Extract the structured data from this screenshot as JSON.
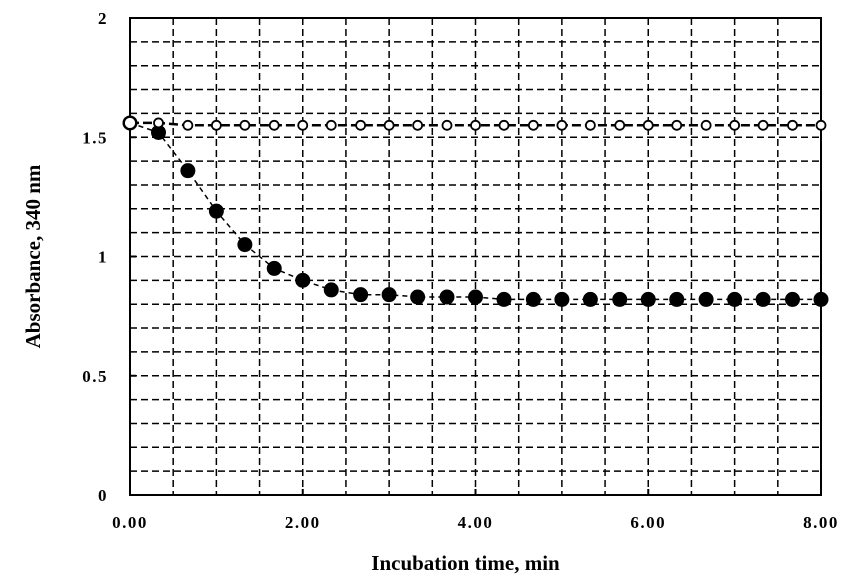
{
  "chart_data": {
    "type": "scatter",
    "xlabel": "Incubation time, min",
    "ylabel": "Absorbance, 340 nm",
    "xlim": [
      0,
      8
    ],
    "ylim": [
      0,
      2
    ],
    "x_ticks": [
      0,
      2,
      4,
      6,
      8
    ],
    "x_tick_labels": [
      "0.00",
      "2.00",
      "4.00",
      "6.00",
      "8.00"
    ],
    "y_ticks": [
      0,
      0.5,
      1,
      1.5,
      2
    ],
    "y_tick_labels": [
      "0",
      "0.5",
      "1",
      "1.5",
      "2"
    ],
    "grid": true,
    "grid_style": "dashed",
    "x_grid_step": 0.5,
    "y_grid_step": 0.1,
    "connector": "dashed",
    "series": [
      {
        "marker": "filled-circle",
        "color": "#000000",
        "x": [
          0,
          0.33,
          0.67,
          1.0,
          1.33,
          1.67,
          2.0,
          2.33,
          2.67,
          3.0,
          3.33,
          3.67,
          4.0,
          4.33,
          4.67,
          5.0,
          5.33,
          5.67,
          6.0,
          6.33,
          6.67,
          7.0,
          7.33,
          7.67,
          8.0
        ],
        "y": [
          1.56,
          1.52,
          1.36,
          1.19,
          1.05,
          0.95,
          0.9,
          0.86,
          0.84,
          0.84,
          0.83,
          0.83,
          0.83,
          0.82,
          0.82,
          0.82,
          0.82,
          0.82,
          0.82,
          0.82,
          0.82,
          0.82,
          0.82,
          0.82,
          0.82
        ]
      },
      {
        "marker": "open-circle",
        "color": "#000000",
        "x": [
          0,
          0.33,
          0.67,
          1.0,
          1.33,
          1.67,
          2.0,
          2.33,
          2.67,
          3.0,
          3.33,
          3.67,
          4.0,
          4.33,
          4.67,
          5.0,
          5.33,
          5.67,
          6.0,
          6.33,
          6.67,
          7.0,
          7.33,
          7.67,
          8.0
        ],
        "y": [
          1.56,
          1.56,
          1.55,
          1.55,
          1.55,
          1.55,
          1.55,
          1.55,
          1.55,
          1.55,
          1.55,
          1.55,
          1.55,
          1.55,
          1.55,
          1.55,
          1.55,
          1.55,
          1.55,
          1.55,
          1.55,
          1.55,
          1.55,
          1.55,
          1.55
        ]
      }
    ]
  }
}
